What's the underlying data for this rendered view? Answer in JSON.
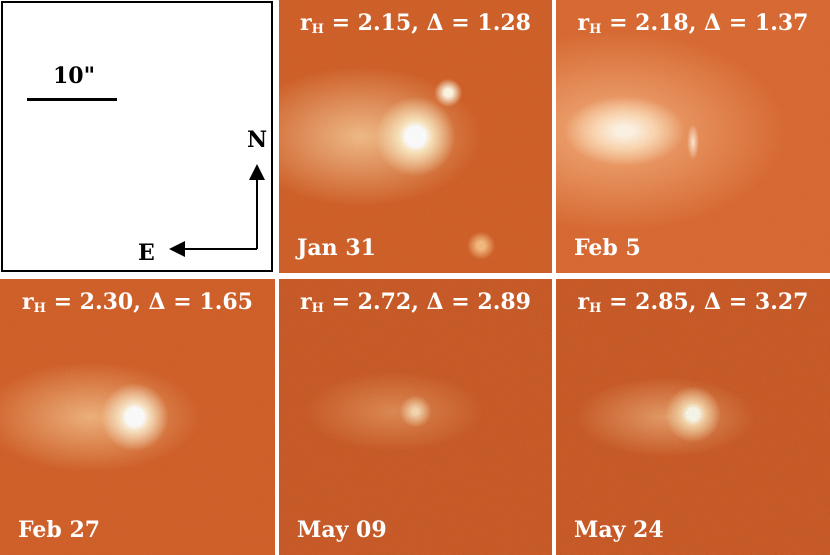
{
  "key": {
    "scale_label": "10\"",
    "north_label": "N",
    "east_label": "E"
  },
  "panels": [
    {
      "top_label_pre": "r",
      "top_label_sub": "H",
      "top_label_post": " = 2.15, Δ = 1.28",
      "date": "Jan 31"
    },
    {
      "top_label_pre": "r",
      "top_label_sub": "H",
      "top_label_post": " = 2.18, Δ = 1.37",
      "date": "Feb 5"
    },
    {
      "top_label_pre": "r",
      "top_label_sub": "H",
      "top_label_post": " = 2.30, Δ = 1.65",
      "date": "Feb 27"
    },
    {
      "top_label_pre": "r",
      "top_label_sub": "H",
      "top_label_post": " = 2.72, Δ = 2.89",
      "date": "May 09"
    },
    {
      "top_label_pre": "r",
      "top_label_sub": "H",
      "top_label_post": " = 2.85, Δ = 3.27",
      "date": "May 24"
    }
  ]
}
